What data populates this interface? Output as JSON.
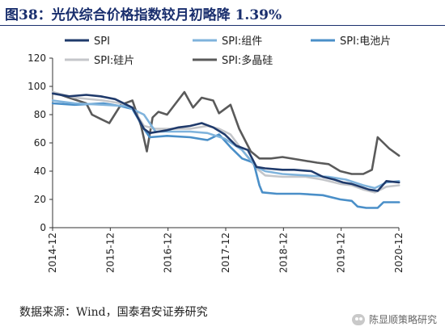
{
  "title": "图38：光伏综合价格指数较月初略降 1.39%",
  "source": "数据来源：Wind，国泰君安证券研究",
  "watermark": "陈显顺策略研究",
  "chart_data": {
    "type": "line",
    "ylim": [
      0,
      120
    ],
    "yticks": [
      0,
      20,
      40,
      60,
      80,
      100,
      120
    ],
    "xlim": [
      2014.917,
      2020.917
    ],
    "xticks": [
      {
        "label": "2014-12",
        "v": 2014.917
      },
      {
        "label": "2015-12",
        "v": 2015.917
      },
      {
        "label": "2016-12",
        "v": 2016.917
      },
      {
        "label": "2017-12",
        "v": 2017.917
      },
      {
        "label": "2018-12",
        "v": 2018.917
      },
      {
        "label": "2019-12",
        "v": 2019.917
      },
      {
        "label": "2020-12",
        "v": 2020.917
      }
    ],
    "grid": false,
    "legend": "top",
    "series": [
      {
        "name": "SPI",
        "color": "#1f3a6b",
        "x": [
          2014.92,
          2015.2,
          2015.5,
          2015.75,
          2016.0,
          2016.3,
          2016.5,
          2016.6,
          2016.9,
          2017.1,
          2017.3,
          2017.5,
          2017.7,
          2017.9,
          2018.1,
          2018.3,
          2018.45,
          2018.6,
          2018.9,
          2019.1,
          2019.4,
          2019.6,
          2019.8,
          2019.95,
          2020.1,
          2020.4,
          2020.55,
          2020.7,
          2020.92
        ],
        "y": [
          95,
          93,
          94,
          93,
          91,
          85,
          70,
          67,
          69,
          71,
          72,
          74,
          71,
          66,
          58,
          55,
          43,
          42,
          41,
          41,
          40,
          36,
          34,
          32,
          31,
          27,
          26,
          33,
          32
        ]
      },
      {
        "name": "SPI:组件",
        "color": "#7fb3dc",
        "x": [
          2014.92,
          2015.3,
          2015.8,
          2016.2,
          2016.5,
          2016.7,
          2016.9,
          2017.3,
          2017.6,
          2017.9,
          2018.2,
          2018.45,
          2018.6,
          2018.9,
          2019.3,
          2019.7,
          2020.0,
          2020.3,
          2020.5,
          2020.7,
          2020.92
        ],
        "y": [
          90,
          88,
          87,
          86,
          80,
          68,
          68,
          68,
          67,
          63,
          55,
          43,
          40,
          38,
          37,
          36,
          34,
          30,
          28,
          32,
          33
        ]
      },
      {
        "name": "SPI:电池片",
        "color": "#4a8fc8",
        "x": [
          2014.92,
          2015.3,
          2015.8,
          2016.1,
          2016.3,
          2016.5,
          2016.6,
          2016.9,
          2017.3,
          2017.6,
          2017.8,
          2018.0,
          2018.2,
          2018.4,
          2018.5,
          2018.55,
          2018.8,
          2019.2,
          2019.6,
          2019.9,
          2020.1,
          2020.2,
          2020.35,
          2020.55,
          2020.65,
          2020.92
        ],
        "y": [
          88,
          87,
          88,
          86,
          84,
          70,
          64,
          65,
          64,
          62,
          66,
          57,
          49,
          46,
          30,
          25,
          24,
          24,
          23,
          20,
          19,
          15,
          14,
          14,
          18,
          18
        ]
      },
      {
        "name": "SPI:硅片",
        "color": "#c4c6ca",
        "x": [
          2014.92,
          2015.3,
          2015.8,
          2016.1,
          2016.3,
          2016.5,
          2016.7,
          2016.9,
          2017.3,
          2017.6,
          2017.8,
          2018.0,
          2018.2,
          2018.45,
          2018.6,
          2018.9,
          2019.3,
          2019.6,
          2019.9,
          2020.1,
          2020.3,
          2020.5,
          2020.7,
          2020.92
        ],
        "y": [
          96,
          92,
          90,
          88,
          85,
          72,
          70,
          70,
          70,
          72,
          70,
          66,
          55,
          42,
          37,
          36,
          36,
          34,
          31,
          30,
          27,
          25,
          29,
          30
        ]
      },
      {
        "name": "SPI:多晶硅",
        "color": "#5a5a5a",
        "x": [
          2014.92,
          2015.2,
          2015.5,
          2015.6,
          2015.75,
          2015.9,
          2016.1,
          2016.3,
          2016.45,
          2016.55,
          2016.65,
          2016.75,
          2016.9,
          2017.05,
          2017.2,
          2017.35,
          2017.5,
          2017.7,
          2017.8,
          2018.0,
          2018.15,
          2018.35,
          2018.5,
          2018.7,
          2018.9,
          2019.2,
          2019.5,
          2019.7,
          2019.9,
          2020.1,
          2020.3,
          2020.45,
          2020.55,
          2020.65,
          2020.75,
          2020.92
        ],
        "y": [
          96,
          92,
          88,
          80,
          77,
          74,
          87,
          90,
          72,
          54,
          78,
          82,
          80,
          88,
          96,
          85,
          92,
          90,
          81,
          87,
          70,
          54,
          49,
          49,
          50,
          48,
          46,
          45,
          40,
          38,
          38,
          41,
          64,
          60,
          56,
          51
        ]
      }
    ]
  }
}
